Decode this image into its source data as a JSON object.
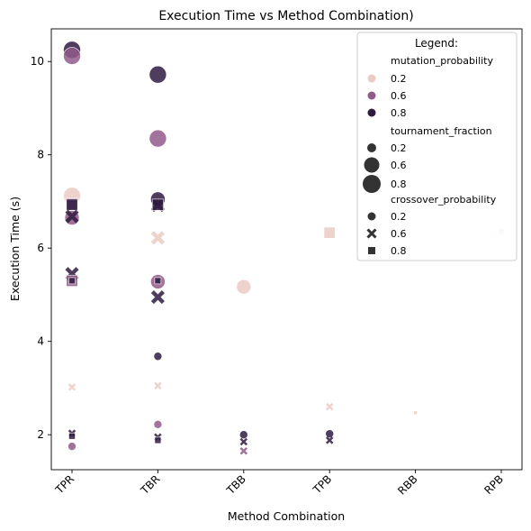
{
  "colors": {
    "mp_0_2": "#ebcbc3",
    "mp_0_6": "#925a8a",
    "mp_0_8": "#2f1b40",
    "neutral": "#333333"
  },
  "chart_data": {
    "type": "scatter",
    "title": "Execution Time vs Method Combination)",
    "xlabel": "Method Combination",
    "ylabel": "Execution Time (s)",
    "categories": [
      "TPR",
      "TBR",
      "TBB",
      "TPB",
      "RBB",
      "RPB"
    ],
    "ylim": [
      1.25,
      10.7
    ],
    "yticks": [
      2,
      4,
      6,
      8,
      10
    ],
    "grid": false,
    "legend": {
      "title": "Legend:",
      "placement": "top-right",
      "hue_title": "mutation_probability",
      "hue_values": [
        "0.2",
        "0.6",
        "0.8"
      ],
      "size_title": "tournament_fraction",
      "size_values": [
        "0.2",
        "0.6",
        "0.8"
      ],
      "style_title": "crossover_probability",
      "style_values": [
        "0.2",
        "0.6",
        "0.8"
      ]
    },
    "encoding": {
      "hue": "mutation_probability",
      "size": "tournament_fraction",
      "style": "crossover_probability (0.2 circle, 0.6 x, 0.8 square)"
    },
    "points": [
      {
        "x": "TPR",
        "y": 10.25,
        "mp": 0.8,
        "tf": 0.8,
        "cp": 0.2
      },
      {
        "x": "TPR",
        "y": 10.12,
        "mp": 0.6,
        "tf": 0.8,
        "cp": 0.2
      },
      {
        "x": "TPR",
        "y": 7.12,
        "mp": 0.2,
        "tf": 0.8,
        "cp": 0.2
      },
      {
        "x": "TPR",
        "y": 6.95,
        "mp": 0.6,
        "tf": 0.6,
        "cp": 0.8
      },
      {
        "x": "TPR",
        "y": 6.93,
        "mp": 0.8,
        "tf": 0.6,
        "cp": 0.8
      },
      {
        "x": "TPR",
        "y": 6.65,
        "mp": 0.6,
        "tf": 0.6,
        "cp": 0.2
      },
      {
        "x": "TPR",
        "y": 6.68,
        "mp": 0.8,
        "tf": 0.6,
        "cp": 0.6
      },
      {
        "x": "TPR",
        "y": 5.45,
        "mp": 0.8,
        "tf": 0.6,
        "cp": 0.6
      },
      {
        "x": "TPR",
        "y": 5.3,
        "mp": 0.6,
        "tf": 0.6,
        "cp": 0.8
      },
      {
        "x": "TPR",
        "y": 5.3,
        "mp": 0.8,
        "tf": 0.2,
        "cp": 0.8
      },
      {
        "x": "TPR",
        "y": 3.02,
        "mp": 0.2,
        "tf": 0.2,
        "cp": 0.6
      },
      {
        "x": "TPR",
        "y": 2.03,
        "mp": 0.8,
        "tf": 0.2,
        "cp": 0.6
      },
      {
        "x": "TPR",
        "y": 1.97,
        "mp": 0.8,
        "tf": 0.2,
        "cp": 0.8
      },
      {
        "x": "TPR",
        "y": 1.75,
        "mp": 0.6,
        "tf": 0.2,
        "cp": 0.2
      },
      {
        "x": "TBR",
        "y": 9.72,
        "mp": 0.8,
        "tf": 0.8,
        "cp": 0.2
      },
      {
        "x": "TBR",
        "y": 8.35,
        "mp": 0.6,
        "tf": 0.8,
        "cp": 0.2
      },
      {
        "x": "TBR",
        "y": 7.05,
        "mp": 0.8,
        "tf": 0.6,
        "cp": 0.2
      },
      {
        "x": "TBR",
        "y": 6.92,
        "mp": 0.8,
        "tf": 0.6,
        "cp": 0.6
      },
      {
        "x": "TBR",
        "y": 6.93,
        "mp": 0.8,
        "tf": 0.6,
        "cp": 0.8
      },
      {
        "x": "TBR",
        "y": 6.22,
        "mp": 0.2,
        "tf": 0.6,
        "cp": 0.6
      },
      {
        "x": "TBR",
        "y": 5.28,
        "mp": 0.6,
        "tf": 0.6,
        "cp": 0.2
      },
      {
        "x": "TBR",
        "y": 5.3,
        "mp": 0.8,
        "tf": 0.2,
        "cp": 0.8
      },
      {
        "x": "TBR",
        "y": 4.95,
        "mp": 0.8,
        "tf": 0.6,
        "cp": 0.6
      },
      {
        "x": "TBR",
        "y": 3.68,
        "mp": 0.8,
        "tf": 0.2,
        "cp": 0.2
      },
      {
        "x": "TBR",
        "y": 3.05,
        "mp": 0.2,
        "tf": 0.2,
        "cp": 0.6
      },
      {
        "x": "TBR",
        "y": 2.22,
        "mp": 0.6,
        "tf": 0.2,
        "cp": 0.2
      },
      {
        "x": "TBR",
        "y": 1.95,
        "mp": 0.8,
        "tf": 0.2,
        "cp": 0.6
      },
      {
        "x": "TBR",
        "y": 1.88,
        "mp": 0.8,
        "tf": 0.2,
        "cp": 0.8
      },
      {
        "x": "TBB",
        "y": 5.17,
        "mp": 0.2,
        "tf": 0.6,
        "cp": 0.2
      },
      {
        "x": "TBB",
        "y": 2.0,
        "mp": 0.8,
        "tf": 0.2,
        "cp": 0.2
      },
      {
        "x": "TBB",
        "y": 1.85,
        "mp": 0.8,
        "tf": 0.2,
        "cp": 0.6
      },
      {
        "x": "TBB",
        "y": 1.65,
        "mp": 0.6,
        "tf": 0.2,
        "cp": 0.6
      },
      {
        "x": "TPB",
        "y": 6.33,
        "mp": 0.2,
        "tf": 0.6,
        "cp": 0.8
      },
      {
        "x": "TPB",
        "y": 2.6,
        "mp": 0.2,
        "tf": 0.2,
        "cp": 0.6
      },
      {
        "x": "TPB",
        "y": 2.02,
        "mp": 0.8,
        "tf": 0.2,
        "cp": 0.2
      },
      {
        "x": "TPB",
        "y": 1.88,
        "mp": 0.8,
        "tf": 0.2,
        "cp": 0.6
      },
      {
        "x": "RBB",
        "y": 2.47,
        "mp": 0.2,
        "tf": 0.2,
        "cp": 0.8,
        "tiny": true
      },
      {
        "x": "RPB",
        "y": 6.35,
        "mp": 0.2,
        "tf": 0.2,
        "cp": 0.8
      }
    ]
  }
}
